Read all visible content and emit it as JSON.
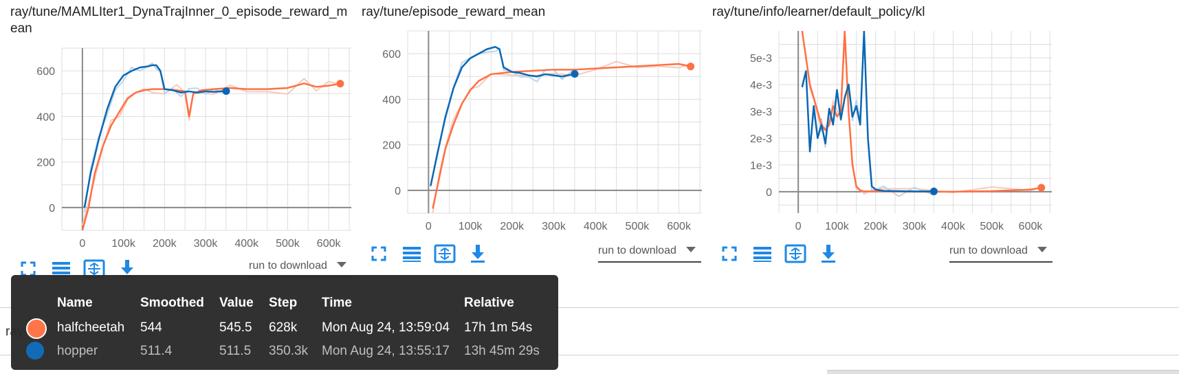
{
  "colors": {
    "halfcheetah": "#ff7043",
    "hopper": "#0a67b5",
    "halfcheetah_raw": "#f5c9bb",
    "hopper_raw": "#b9d6ec",
    "toolbar_icon": "#1e88e5"
  },
  "toolbar": {
    "icons": [
      "fullscreen-icon",
      "list-icon",
      "fit-domain-icon",
      "download-icon"
    ],
    "download_label": "run to download"
  },
  "chart_data": [
    {
      "type": "line",
      "title": "ray/tune/MAMLIter1_DynaTrajInner_0_episode_reward_mean",
      "xticks": [
        0,
        100000,
        200000,
        300000,
        400000,
        500000,
        600000
      ],
      "xtick_labels": [
        "0",
        "100k",
        "200k",
        "300k",
        "400k",
        "500k",
        "600k"
      ],
      "yticks": [
        0,
        200,
        400,
        600
      ],
      "ytick_labels": [
        "0",
        "200",
        "400",
        "600"
      ],
      "xlim": [
        -50000,
        655000
      ],
      "ylim": [
        -100,
        700
      ],
      "grid": true,
      "series": [
        {
          "name": "hopper",
          "x": [
            5000,
            20000,
            40000,
            60000,
            80000,
            100000,
            120000,
            140000,
            160000,
            170000,
            180000,
            190000,
            200000,
            220000,
            240000,
            260000,
            280000,
            300000,
            320000,
            350300
          ],
          "y": [
            0,
            150,
            300,
            430,
            530,
            580,
            600,
            615,
            620,
            625,
            625,
            600,
            520,
            515,
            505,
            510,
            505,
            510,
            508,
            511.4
          ]
        },
        {
          "name": "halfcheetah",
          "x": [
            0,
            15000,
            30000,
            50000,
            70000,
            90000,
            110000,
            130000,
            150000,
            170000,
            200000,
            230000,
            250000,
            260000,
            270000,
            290000,
            320000,
            360000,
            400000,
            450000,
            500000,
            540000,
            570000,
            600000,
            628000
          ],
          "y": [
            -100,
            0,
            150,
            270,
            360,
            420,
            480,
            505,
            515,
            520,
            520,
            515,
            510,
            400,
            500,
            515,
            520,
            525,
            520,
            520,
            525,
            545,
            530,
            535,
            544
          ]
        }
      ]
    },
    {
      "type": "line",
      "title": "ray/tune/episode_reward_mean",
      "xticks": [
        0,
        100000,
        200000,
        300000,
        400000,
        500000,
        600000
      ],
      "xtick_labels": [
        "0",
        "100k",
        "200k",
        "300k",
        "400k",
        "500k",
        "600k"
      ],
      "yticks": [
        0,
        200,
        400,
        600
      ],
      "ytick_labels": [
        "0",
        "200",
        "400",
        "600"
      ],
      "xlim": [
        -50000,
        655000
      ],
      "ylim": [
        -100,
        700
      ],
      "grid": true,
      "series": [
        {
          "name": "hopper",
          "x": [
            5000,
            20000,
            40000,
            60000,
            80000,
            100000,
            120000,
            140000,
            160000,
            170000,
            180000,
            200000,
            220000,
            240000,
            260000,
            280000,
            300000,
            320000,
            350300
          ],
          "y": [
            20,
            150,
            320,
            450,
            540,
            580,
            600,
            620,
            630,
            620,
            540,
            520,
            515,
            505,
            500,
            510,
            505,
            500,
            511.4
          ]
        },
        {
          "name": "halfcheetah",
          "x": [
            10000,
            25000,
            40000,
            60000,
            80000,
            100000,
            120000,
            150000,
            200000,
            250000,
            300000,
            350000,
            400000,
            450000,
            500000,
            550000,
            600000,
            628000
          ],
          "y": [
            -80,
            50,
            180,
            290,
            380,
            440,
            480,
            510,
            520,
            525,
            530,
            530,
            535,
            540,
            545,
            550,
            555,
            544
          ]
        }
      ]
    },
    {
      "type": "line",
      "title": "ray/tune/info/learner/default_policy/kl",
      "xticks": [
        0,
        100000,
        200000,
        300000,
        400000,
        500000,
        600000
      ],
      "xtick_labels": [
        "0",
        "100k",
        "200k",
        "300k",
        "400k",
        "500k",
        "600k"
      ],
      "yticks": [
        0,
        0.001,
        0.002,
        0.003,
        0.004,
        0.005
      ],
      "ytick_labels": [
        "0",
        "1e-3",
        "2e-3",
        "3e-3",
        "4e-3",
        "5e-3"
      ],
      "xlim": [
        -50000,
        655000
      ],
      "ylim": [
        -0.0008,
        0.006
      ],
      "grid": true,
      "series": [
        {
          "name": "hopper",
          "x": [
            10000,
            20000,
            30000,
            40000,
            50000,
            60000,
            70000,
            80000,
            90000,
            100000,
            110000,
            120000,
            130000,
            140000,
            150000,
            160000,
            170000,
            180000,
            190000,
            200000,
            220000,
            260000,
            300000,
            350300
          ],
          "y": [
            0.0039,
            0.0045,
            0.0015,
            0.0032,
            0.002,
            0.0025,
            0.0018,
            0.0031,
            0.0025,
            0.0038,
            0.0027,
            0.0035,
            0.004,
            0.0028,
            0.0032,
            0.0025,
            0.006,
            0.002,
            0.0002,
            8e-05,
            3e-05,
            2e-05,
            1e-05,
            1e-05
          ]
        },
        {
          "name": "halfcheetah",
          "x": [
            10000,
            20000,
            30000,
            40000,
            50000,
            60000,
            70000,
            80000,
            90000,
            100000,
            110000,
            120000,
            130000,
            140000,
            150000,
            160000,
            170000,
            200000,
            300000,
            400000,
            500000,
            600000,
            628000
          ],
          "y": [
            0.006,
            0.005,
            0.004,
            0.0035,
            0.003,
            0.0025,
            0.0023,
            0.0025,
            0.0032,
            0.0028,
            0.003,
            0.006,
            0.003,
            0.001,
            0.0002,
            5e-05,
            1e-05,
            1e-05,
            0.0,
            0.0,
            2e-05,
            8e-05,
            0.00015
          ]
        }
      ]
    }
  ],
  "tooltip": {
    "headers": [
      "Name",
      "Smoothed",
      "Value",
      "Step",
      "Time",
      "Relative"
    ],
    "rows": [
      {
        "series": "halfcheetah",
        "name": "halfcheetah",
        "smoothed": "544",
        "value": "545.5",
        "step": "628k",
        "time": "Mon Aug 24, 13:59:04",
        "relative": "17h 1m 54s"
      },
      {
        "series": "hopper",
        "name": "hopper",
        "smoothed": "511.4",
        "value": "511.5",
        "step": "350.3k",
        "time": "Mon Aug 24, 13:55:17",
        "relative": "13h 45m 29s"
      }
    ]
  },
  "stray_text": "ray"
}
